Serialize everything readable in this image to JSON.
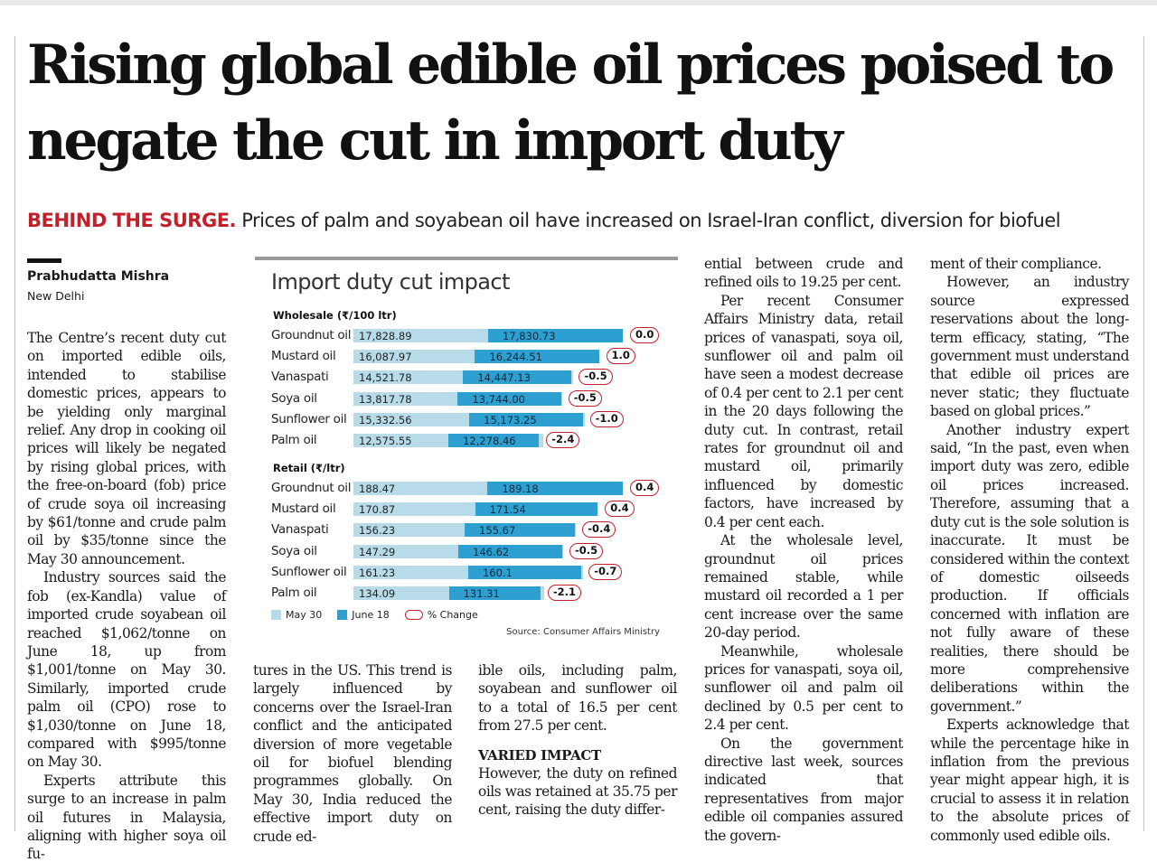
{
  "headline": "Rising global edible oil prices poised to negate the cut in import duty",
  "deck": {
    "kicker": "BEHIND THE SURGE.",
    "text": "Prices of palm and soyabean oil have increased on Israel-Iran conflict, diversion for biofuel"
  },
  "byline": "Prabhudatta Mishra",
  "dateline": "New Delhi",
  "body": {
    "c1p1": "The Centre’s recent duty cut on imported edible oils, intended to stabilise domestic prices, appears to be yielding only marginal relief. Any drop in cooking oil prices will likely be negated by rising global prices, with the free-on-board (fob) price of crude soya oil increasing by $61/tonne and crude palm oil by $35/tonne since the May 30 announcement.",
    "c1p2": "Industry sources said the fob (ex-Kandla) value of imported crude soyabean oil reached $1,062/tonne on June 18, up from $1,001/tonne on May 30. Similarly, imported crude palm oil (CPO) rose to $1,030/tonne on June 18, compared with $995/tonne on May 30.",
    "c1p3": "Experts attribute this surge to an increase in palm oil futures in Malaysia, aligning with higher soya oil fu-",
    "c2p1": "tures in the US. This trend is largely influenced by concerns over the Israel-Iran conflict and the anticipated diversion of more vegetable oil for biofuel blending programmes globally. On May 30, India reduced the effective import duty on crude ed-",
    "c3p1": "ible oils, including palm, soyabean and sunflower oil to a total of 16.5 per cent from 27.5 per cent.",
    "c3h": "VARIED IMPACT",
    "c3p2": "However, the duty on refined oils was retained at 35.75 per cent, raising the duty differ-",
    "c4p1": "ential between crude and refined oils to 19.25 per cent.",
    "c4p2": "Per recent Consumer Affairs Ministry data, retail prices of vanaspati, soya oil, sunflower oil and palm oil have seen a modest decrease of 0.4 per cent to 2.1 per cent in the 20 days following the duty cut. In contrast, retail rates for groundnut oil and mustard oil, primarily influenced by domestic factors, have increased by 0.4 per cent each.",
    "c4p3": "At the wholesale level, groundnut oil prices remained stable, while mustard oil recorded a 1 per cent increase over the same 20-day period.",
    "c4p4": "Meanwhile, wholesale prices for vanaspati, soya oil, sunflower oil and palm oil declined by 0.5 per cent to 2.4 per cent.",
    "c4p5": "On the government directive last week, sources indicated that representatives from major edible oil companies assured the govern-",
    "c5p1": "ment of their compliance.",
    "c5p2": "However, an industry source expressed reservations about the long-term efficacy, stating, “The government must understand that edible oil prices are never static; they fluctuate based on global prices.”",
    "c5p3": "Another industry expert said, “In the past, even when import duty was zero, edible oil prices increased. Therefore, assuming that a duty cut is the sole solution is inaccurate. It must be considered within the context of domestic oilseeds production. If officials concerned with inflation are not fully aware of these realities, there should be more comprehensive deliberations within the government.”",
    "c5p4": "Experts acknowledge that while the percentage hike in inflation from the previous year might appear high, it is crucial to assess it in relation to the absolute prices of commonly used edible oils."
  },
  "chart_data": {
    "type": "bar",
    "title": "Import duty cut impact",
    "source": "Source: Consumer Affairs Ministry",
    "legend": [
      "May 30",
      "June 18",
      "% Change"
    ],
    "colors": {
      "may": "#b8dbea",
      "june": "#2d9fd1",
      "change": "#c2202a"
    },
    "groups": [
      {
        "name": "Wholesale (₹/100 ltr)",
        "max": 17828.89,
        "rows": [
          {
            "label": "Groundnut oil",
            "may": "17,828.89",
            "june": "17,830.73",
            "may_v": 17828.89,
            "june_v": 17830.73,
            "change": "0.0"
          },
          {
            "label": "Mustard oil",
            "may": "16,087.97",
            "june": "16,244.51",
            "may_v": 16087.97,
            "june_v": 16244.51,
            "change": "1.0"
          },
          {
            "label": "Vanaspati",
            "may": "14,521.78",
            "june": "14,447.13",
            "may_v": 14521.78,
            "june_v": 14447.13,
            "change": "-0.5"
          },
          {
            "label": "Soya oil",
            "may": "13,817.78",
            "june": "13,744.00",
            "may_v": 13817.78,
            "june_v": 13744.0,
            "change": "-0.5"
          },
          {
            "label": "Sunflower oil",
            "may": "15,332.56",
            "june": "15,173.25",
            "may_v": 15332.56,
            "june_v": 15173.25,
            "change": "-1.0"
          },
          {
            "label": "Palm oil",
            "may": "12,575.55",
            "june": "12,278.46",
            "may_v": 12575.55,
            "june_v": 12278.46,
            "change": "-2.4"
          }
        ]
      },
      {
        "name": "Retail (₹/ltr)",
        "max": 189.18,
        "rows": [
          {
            "label": "Groundnut oil",
            "may": "188.47",
            "june": "189.18",
            "may_v": 188.47,
            "june_v": 189.18,
            "change": "0.4"
          },
          {
            "label": "Mustard oil",
            "may": "170.87",
            "june": "171.54",
            "may_v": 170.87,
            "june_v": 171.54,
            "change": "0.4"
          },
          {
            "label": "Vanaspati",
            "may": "156.23",
            "june": "155.67",
            "may_v": 156.23,
            "june_v": 155.67,
            "change": "-0.4"
          },
          {
            "label": "Soya oil",
            "may": "147.29",
            "june": "146.62",
            "may_v": 147.29,
            "june_v": 146.62,
            "change": "-0.5"
          },
          {
            "label": "Sunflower oil",
            "may": "161.23",
            "june": "160.1",
            "may_v": 161.23,
            "june_v": 160.1,
            "change": "-0.7"
          },
          {
            "label": "Palm oil",
            "may": "134.09",
            "june": "131.31",
            "may_v": 134.09,
            "june_v": 131.31,
            "change": "-2.1"
          }
        ]
      }
    ]
  }
}
